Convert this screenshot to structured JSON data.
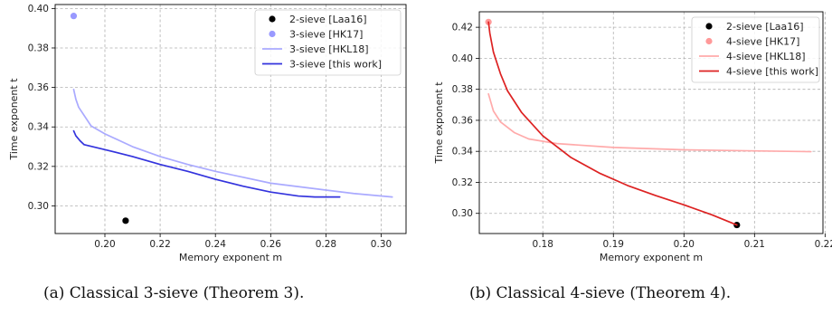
{
  "chart_data": [
    {
      "type": "line",
      "caption": "(a) Classical 3-sieve (Theorem 3).",
      "xlabel": "Memory exponent m",
      "ylabel": "Time exponent t",
      "xlim": [
        0.182,
        0.309
      ],
      "ylim": [
        0.286,
        0.402
      ],
      "xticks": [
        0.2,
        0.22,
        0.24,
        0.26,
        0.28,
        0.3
      ],
      "xtick_labels": [
        "0.20",
        "0.22",
        "0.24",
        "0.26",
        "0.28",
        "0.30"
      ],
      "yticks": [
        0.3,
        0.32,
        0.34,
        0.36,
        0.38,
        0.4
      ],
      "ytick_labels": [
        "0.30",
        "0.32",
        "0.34",
        "0.36",
        "0.38",
        "0.40"
      ],
      "grid": true,
      "legend_position": "top-right",
      "series": [
        {
          "name": "2-sieve [Laa16]",
          "kind": "point",
          "color": "#000000",
          "points": [
            [
              0.2075,
              0.2925
            ]
          ]
        },
        {
          "name": "3-sieve [HK17]",
          "kind": "point",
          "color": "#9999ff",
          "points": [
            [
              0.1887,
              0.3962
            ]
          ]
        },
        {
          "name": "3-sieve [HKL18]",
          "kind": "line",
          "color": "#aaaaff",
          "points": [
            [
              0.1887,
              0.359
            ],
            [
              0.1895,
              0.354
            ],
            [
              0.1905,
              0.35
            ],
            [
              0.195,
              0.3405
            ],
            [
              0.2,
              0.3365
            ],
            [
              0.21,
              0.33
            ],
            [
              0.22,
              0.325
            ],
            [
              0.23,
              0.321
            ],
            [
              0.24,
              0.3175
            ],
            [
              0.25,
              0.3145
            ],
            [
              0.26,
              0.3115
            ],
            [
              0.28,
              0.308
            ],
            [
              0.29,
              0.3063
            ],
            [
              0.304,
              0.3045
            ]
          ]
        },
        {
          "name": "3-sieve [this work]",
          "kind": "line",
          "color": "#3333dd",
          "points": [
            [
              0.1887,
              0.338
            ],
            [
              0.1895,
              0.3355
            ],
            [
              0.191,
              0.333
            ],
            [
              0.1925,
              0.331
            ],
            [
              0.2,
              0.3285
            ],
            [
              0.21,
              0.325
            ],
            [
              0.22,
              0.321
            ],
            [
              0.23,
              0.3175
            ],
            [
              0.24,
              0.3135
            ],
            [
              0.25,
              0.31
            ],
            [
              0.26,
              0.307
            ],
            [
              0.27,
              0.305
            ],
            [
              0.276,
              0.3045
            ],
            [
              0.285,
              0.3045
            ]
          ]
        }
      ]
    },
    {
      "type": "line",
      "caption": "(b) Classical 4-sieve (Theorem 4).",
      "xlabel": "Memory exponent m",
      "ylabel": "Time exponent t",
      "xlim": [
        0.171,
        0.2197
      ],
      "ylim": [
        0.287,
        0.43
      ],
      "xticks": [
        0.18,
        0.19,
        0.2,
        0.21,
        0.22
      ],
      "xtick_labels": [
        "0.18",
        "0.19",
        "0.20",
        "0.21",
        "0.22"
      ],
      "yticks": [
        0.3,
        0.32,
        0.34,
        0.36,
        0.38,
        0.4,
        0.42
      ],
      "ytick_labels": [
        "0.30",
        "0.32",
        "0.34",
        "0.36",
        "0.38",
        "0.40",
        "0.42"
      ],
      "grid": true,
      "legend_position": "top-right",
      "series": [
        {
          "name": "2-sieve [Laa16]",
          "kind": "point",
          "color": "#000000",
          "points": [
            [
              0.2075,
              0.2925
            ]
          ]
        },
        {
          "name": "4-sieve [HK17]",
          "kind": "point",
          "color": "#ff9999",
          "points": [
            [
              0.1723,
              0.4234
            ]
          ]
        },
        {
          "name": "4-sieve [HKL18]",
          "kind": "line",
          "color": "#ffaaaa",
          "points": [
            [
              0.1723,
              0.377
            ],
            [
              0.173,
              0.366
            ],
            [
              0.174,
              0.359
            ],
            [
              0.176,
              0.352
            ],
            [
              0.178,
              0.348
            ],
            [
              0.182,
              0.345
            ],
            [
              0.19,
              0.3425
            ],
            [
              0.2,
              0.341
            ],
            [
              0.21,
              0.3403
            ],
            [
              0.218,
              0.3398
            ]
          ]
        },
        {
          "name": "4-sieve [this work]",
          "kind": "line",
          "color": "#dd2222",
          "points": [
            [
              0.1723,
              0.4234
            ],
            [
              0.1725,
              0.416
            ],
            [
              0.173,
              0.404
            ],
            [
              0.174,
              0.39
            ],
            [
              0.175,
              0.379
            ],
            [
              0.177,
              0.365
            ],
            [
              0.18,
              0.35
            ],
            [
              0.184,
              0.336
            ],
            [
              0.188,
              0.326
            ],
            [
              0.192,
              0.318
            ],
            [
              0.196,
              0.3115
            ],
            [
              0.2,
              0.3055
            ],
            [
              0.204,
              0.299
            ],
            [
              0.2075,
              0.2925
            ]
          ]
        }
      ]
    }
  ]
}
